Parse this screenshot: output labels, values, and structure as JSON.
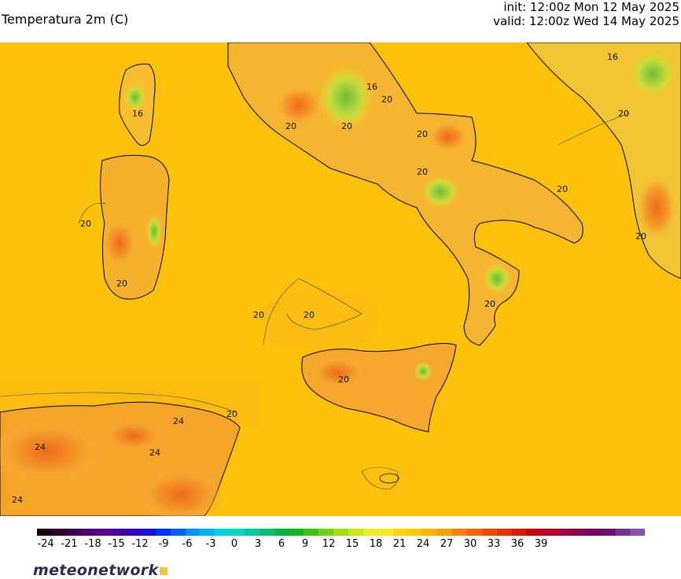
{
  "header": {
    "title": "Temperatura 2m (C)",
    "init": "init: 12:00z Mon 12 May 2025",
    "valid": "valid: 12:00z Wed 14 May 2025"
  },
  "map": {
    "contour_labels": [
      "16",
      "16",
      "16",
      "20",
      "20",
      "20",
      "20",
      "20",
      "20",
      "20",
      "20",
      "20",
      "20",
      "20",
      "20",
      "20",
      "20",
      "24",
      "24",
      "24",
      "24",
      "20"
    ]
  },
  "colorbar": {
    "tick_labels": [
      "-24",
      "-21",
      "-18",
      "-15",
      "-12",
      "-9",
      "-6",
      "-3",
      "0",
      "3",
      "6",
      "9",
      "12",
      "15",
      "18",
      "21",
      "24",
      "27",
      "30",
      "33",
      "36",
      "39"
    ],
    "colors": [
      "#1a0010",
      "#30002a",
      "#3f0050",
      "#50006e",
      "#5a008c",
      "#4a00a8",
      "#3200c0",
      "#1a10d8",
      "#0030ff",
      "#0060ff",
      "#0090ff",
      "#00b4f0",
      "#00d0e0",
      "#00d8c0",
      "#00c8a0",
      "#00c070",
      "#00b040",
      "#10b820",
      "#40c010",
      "#70d010",
      "#a0e010",
      "#c8e818",
      "#e8ec20",
      "#f8e820",
      "#ffd800",
      "#ffc800",
      "#ffb400",
      "#ff9c00",
      "#ff8000",
      "#f86400",
      "#f04800",
      "#e83000",
      "#e01800",
      "#d00010",
      "#c00028",
      "#a80040",
      "#900050",
      "#7c0060",
      "#6c1070",
      "#7a3090",
      "#8a50b0"
    ]
  },
  "brand": {
    "name": "meteonetwork"
  }
}
